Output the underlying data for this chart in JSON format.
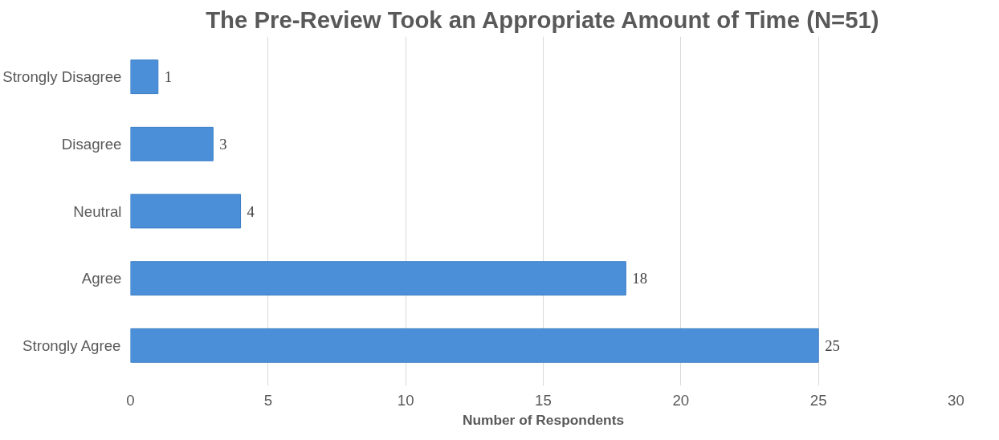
{
  "chart_data": {
    "type": "bar",
    "orientation": "horizontal",
    "title": "The Pre-Review Took an Appropriate Amount of Time (N=51)",
    "xlabel": "Number of Respondents",
    "categories": [
      "Strongly Disagree",
      "Disagree",
      "Neutral",
      "Agree",
      "Strongly Agree"
    ],
    "values": [
      1,
      3,
      4,
      18,
      25
    ],
    "color": "#4a8fd8",
    "xlim": [
      0,
      30
    ],
    "xticks": [
      0,
      5,
      10,
      15,
      20,
      25,
      30
    ],
    "grid": "x",
    "data_labels": true
  }
}
